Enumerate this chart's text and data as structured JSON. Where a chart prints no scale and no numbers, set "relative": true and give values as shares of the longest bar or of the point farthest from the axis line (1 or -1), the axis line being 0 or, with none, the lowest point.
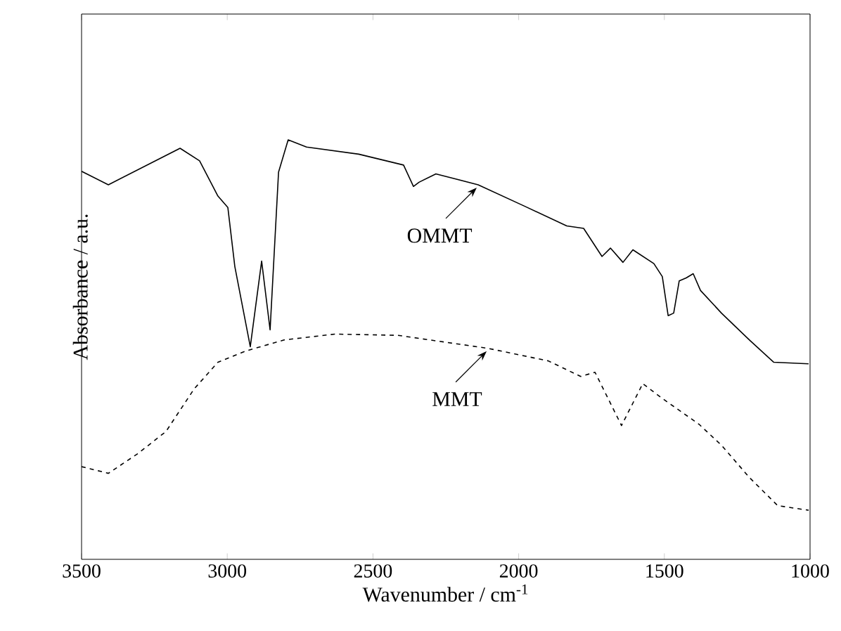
{
  "chart_data": {
    "type": "line",
    "xlabel": "Wavenumber / cm$^{-1}$",
    "ylabel": "Absorbance / a.u.",
    "relative": true,
    "xlim": [
      3500,
      1000
    ],
    "xticks": [
      3500,
      3000,
      2500,
      2000,
      1500,
      1000
    ],
    "tick_labels": "x",
    "marker": "none",
    "annotations": [
      {
        "text": "OMMT",
        "x": 2139,
        "y": 0.893
      },
      {
        "text": "MMT",
        "x": 2105,
        "y": 0.503
      }
    ],
    "series": [
      {
        "color": "#000000",
        "line_style": "solid",
        "x": [
          3500,
          3408,
          3162,
          3095,
          3032,
          2998,
          2974,
          2921,
          2882,
          2853,
          2824,
          2791,
          2728,
          2549,
          2395,
          2361,
          2342,
          2284,
          2139,
          1980,
          1835,
          1777,
          1714,
          1685,
          1642,
          1608,
          1536,
          1507,
          1487,
          1468,
          1449,
          1425,
          1401,
          1376,
          1304,
          1208,
          1125,
          1005
        ],
        "values": [
          0.925,
          0.893,
          0.98,
          0.95,
          0.866,
          0.839,
          0.698,
          0.507,
          0.711,
          0.547,
          0.923,
          1.0,
          0.983,
          0.966,
          0.94,
          0.889,
          0.899,
          0.919,
          0.893,
          0.842,
          0.795,
          0.789,
          0.722,
          0.742,
          0.708,
          0.738,
          0.705,
          0.674,
          0.581,
          0.587,
          0.664,
          0.671,
          0.681,
          0.641,
          0.587,
          0.523,
          0.47,
          0.466
        ]
      },
      {
        "color": "#000000",
        "line_style": "dashed",
        "x": [
          3500,
          3408,
          3307,
          3210,
          3114,
          3032,
          2935,
          2805,
          2631,
          2414,
          2105,
          1898,
          1787,
          1738,
          1647,
          1574,
          1512,
          1381,
          1304,
          1208,
          1111,
          1005
        ],
        "values": [
          0.221,
          0.205,
          0.252,
          0.305,
          0.406,
          0.47,
          0.497,
          0.523,
          0.537,
          0.534,
          0.503,
          0.473,
          0.436,
          0.446,
          0.319,
          0.419,
          0.386,
          0.322,
          0.272,
          0.195,
          0.128,
          0.117
        ]
      }
    ]
  }
}
